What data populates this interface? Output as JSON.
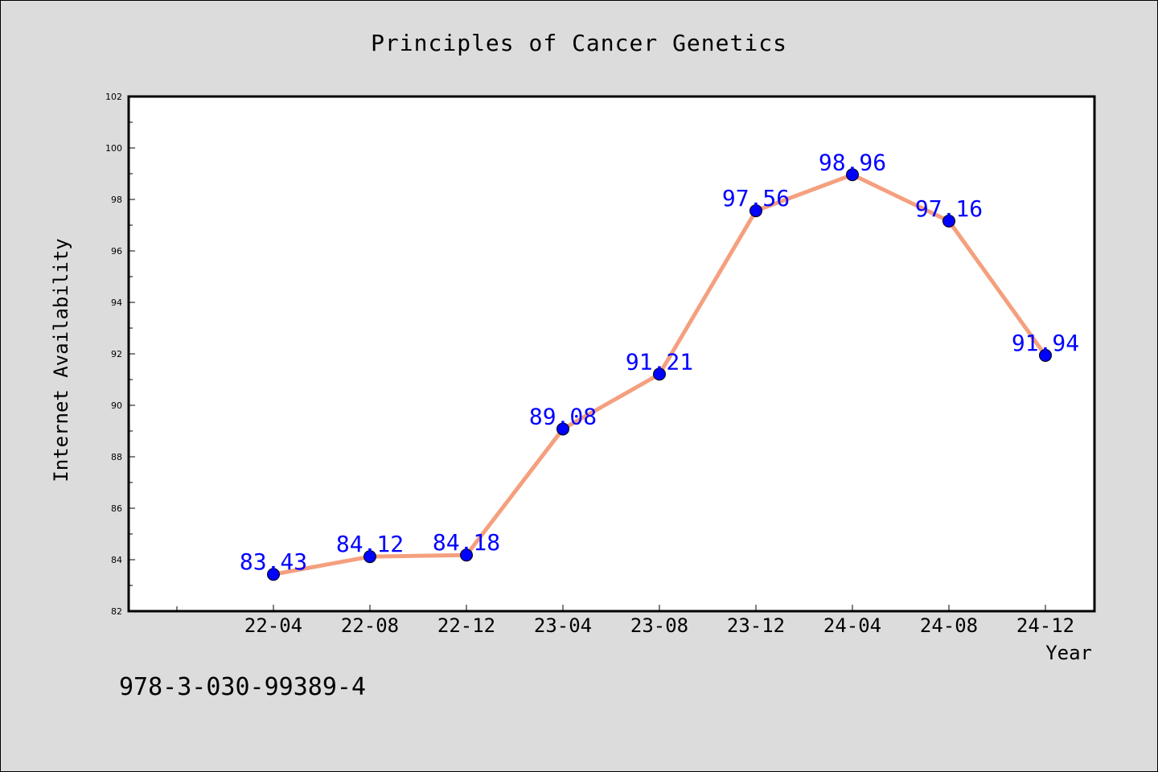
{
  "chart_data": {
    "type": "line",
    "title": "Principles of Cancer Genetics",
    "xlabel": "Year",
    "ylabel": "Internet Availability",
    "categories": [
      "22-04",
      "22-08",
      "22-12",
      "23-04",
      "23-08",
      "23-12",
      "24-04",
      "24-08",
      "24-12"
    ],
    "series": [
      {
        "values": [
          83.43,
          84.12,
          84.18,
          89.08,
          91.21,
          97.56,
          98.96,
          97.16,
          91.94
        ],
        "data_labels": [
          "83.43",
          "84.12",
          "84.18",
          "89.08",
          "91.21",
          "97.56",
          "98.96",
          "97.16",
          "91.94"
        ],
        "line_color": "#f4a07f",
        "marker_color": "#0000ff"
      }
    ],
    "ylim": [
      82,
      102
    ],
    "yticks": [
      82,
      84,
      86,
      88,
      90,
      92,
      94,
      96,
      98,
      100,
      102
    ],
    "ytick_labels": [
      "82",
      "84",
      "86",
      "88",
      "90",
      "92",
      "94",
      "96",
      "98",
      "100",
      "102"
    ],
    "grid": false,
    "legend": false,
    "colors": {
      "background": "#dcdcdc",
      "plot_area": "#ffffff",
      "line": "#f4a07f",
      "marker": "#0000ff",
      "data_label": "#0000ff"
    }
  },
  "footer": {
    "isbn": "978-3-030-99389-4"
  }
}
